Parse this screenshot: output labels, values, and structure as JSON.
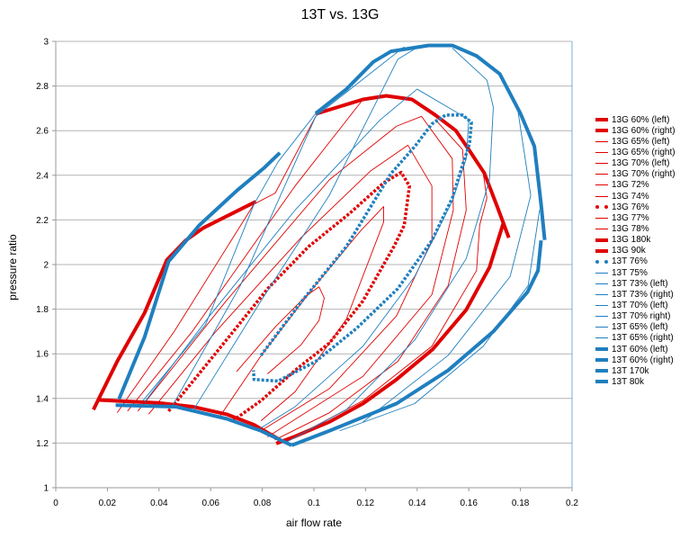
{
  "chart_data": {
    "type": "line",
    "title": "13T vs. 13G",
    "xlabel": "air flow rate",
    "ylabel": "pressure ratio",
    "xlim": [
      0,
      0.2
    ],
    "ylim": [
      1,
      3
    ],
    "xticks": [
      "0",
      "0.02",
      "0.04",
      "0.06",
      "0.08",
      "0.1",
      "0.12",
      "0.14",
      "0.16",
      "0.18",
      "0.2"
    ],
    "yticks": [
      "1",
      "1.2",
      "1.4",
      "1.6",
      "1.8",
      "2",
      "2.2",
      "2.4",
      "2.6",
      "2.8",
      "3"
    ],
    "grid": "horizontal",
    "legend": "right",
    "colors": {
      "13G": "#e00000",
      "13T": "#1f7fbf"
    },
    "series": [
      {
        "name": "13G 60% (left)",
        "color": "#e00000",
        "style": "bold",
        "points": [
          [
            0.0146,
            1.35
          ],
          [
            0.0166,
            1.397
          ],
          [
            0.0238,
            1.566
          ],
          [
            0.0344,
            1.783
          ],
          [
            0.043,
            2.02
          ],
          [
            0.0503,
            2.108
          ],
          [
            0.057,
            2.163
          ],
          [
            0.0675,
            2.224
          ],
          [
            0.0775,
            2.282
          ]
        ]
      },
      {
        "name": "13G 60% (right)",
        "color": "#e00000",
        "style": "bold",
        "points": [
          [
            0.0166,
            1.393
          ],
          [
            0.0397,
            1.38
          ],
          [
            0.053,
            1.363
          ],
          [
            0.0662,
            1.329
          ],
          [
            0.0768,
            1.282
          ],
          [
            0.0874,
            1.211
          ]
        ]
      },
      {
        "name": "13G 65% (left)",
        "color": "#e00000",
        "style": "thin",
        "points": [
          [
            0.0278,
            1.343
          ],
          [
            0.053,
            1.702
          ],
          [
            0.0927,
            2.352
          ],
          [
            0.119,
            2.74
          ]
        ]
      },
      {
        "name": "13G 65% (right)",
        "color": "#e00000",
        "style": "thin",
        "points": [
          [
            0.1656,
            2.407
          ],
          [
            0.167,
            2.298
          ],
          [
            0.1642,
            2.176
          ],
          [
            0.163,
            1.973
          ],
          [
            0.1457,
            1.634
          ],
          [
            0.119,
            1.39
          ],
          [
            0.0927,
            1.228
          ]
        ]
      },
      {
        "name": "13G 70% (left)",
        "color": "#e00000",
        "style": "thin",
        "points": [
          [
            0.0238,
            1.336
          ],
          [
            0.046,
            1.702
          ],
          [
            0.0768,
            2.271
          ],
          [
            0.085,
            2.32
          ],
          [
            0.1007,
            2.664
          ]
        ]
      },
      {
        "name": "13G 70% (right)",
        "color": "#e00000",
        "style": "thin",
        "points": [
          [
            0.147,
            2.65
          ],
          [
            0.1576,
            2.515
          ],
          [
            0.159,
            2.244
          ],
          [
            0.152,
            1.906
          ],
          [
            0.1325,
            1.566
          ],
          [
            0.106,
            1.336
          ],
          [
            0.0848,
            1.214
          ]
        ]
      },
      {
        "name": "13G 72%",
        "color": "#e00000",
        "style": "thin",
        "points": [
          [
            0.0318,
            1.343
          ],
          [
            0.066,
            1.837
          ],
          [
            0.106,
            2.38
          ],
          [
            0.132,
            2.62
          ],
          [
            0.1417,
            2.664
          ],
          [
            0.1536,
            2.474
          ],
          [
            0.154,
            2.244
          ],
          [
            0.1457,
            1.865
          ],
          [
            0.119,
            1.499
          ],
          [
            0.082,
            1.228
          ]
        ]
      },
      {
        "name": "13G 74%",
        "color": "#e00000",
        "style": "thin",
        "points": [
          [
            0.036,
            1.33
          ],
          [
            0.062,
            1.7
          ],
          [
            0.095,
            2.12
          ],
          [
            0.122,
            2.42
          ],
          [
            0.1364,
            2.535
          ],
          [
            0.1457,
            2.352
          ],
          [
            0.1457,
            2.108
          ],
          [
            0.132,
            1.77
          ],
          [
            0.106,
            1.444
          ],
          [
            0.0795,
            1.255
          ]
        ]
      },
      {
        "name": "13G 76%",
        "color": "#e00000",
        "style": "dotted",
        "points": [
          [
            0.0437,
            1.343
          ],
          [
            0.0556,
            1.512
          ],
          [
            0.0689,
            1.702
          ],
          [
            0.0821,
            1.892
          ],
          [
            0.098,
            2.081
          ],
          [
            0.1139,
            2.23
          ],
          [
            0.127,
            2.366
          ],
          [
            0.1338,
            2.413
          ],
          [
            0.137,
            2.352
          ],
          [
            0.135,
            2.176
          ],
          [
            0.131,
            2.081
          ],
          [
            0.119,
            1.837
          ],
          [
            0.106,
            1.648
          ],
          [
            0.0927,
            1.526
          ],
          [
            0.0795,
            1.39
          ],
          [
            0.068,
            1.295
          ]
        ]
      },
      {
        "name": "13G 77%",
        "color": "#e00000",
        "style": "thin",
        "points": [
          [
            0.0636,
            1.32
          ],
          [
            0.08,
            1.6
          ],
          [
            0.1,
            1.9
          ],
          [
            0.118,
            2.15
          ],
          [
            0.127,
            2.26
          ],
          [
            0.127,
            2.19
          ],
          [
            0.1126,
            1.756
          ],
          [
            0.0927,
            1.43
          ],
          [
            0.0795,
            1.3
          ]
        ]
      },
      {
        "name": "13G 78%",
        "color": "#e00000",
        "style": "thin",
        "points": [
          [
            0.07,
            1.52
          ],
          [
            0.085,
            1.72
          ],
          [
            0.097,
            1.86
          ],
          [
            0.102,
            1.9
          ],
          [
            0.104,
            1.85
          ],
          [
            0.102,
            1.75
          ],
          [
            0.095,
            1.64
          ],
          [
            0.082,
            1.51
          ]
        ]
      },
      {
        "name": "13G 180k",
        "color": "#e00000",
        "style": "bold",
        "points": [
          [
            0.1007,
            2.675
          ],
          [
            0.119,
            2.74
          ],
          [
            0.128,
            2.756
          ],
          [
            0.138,
            2.74
          ],
          [
            0.147,
            2.67
          ],
          [
            0.155,
            2.6
          ],
          [
            0.16,
            2.515
          ],
          [
            0.166,
            2.41
          ],
          [
            0.171,
            2.26
          ],
          [
            0.1755,
            2.12
          ]
        ]
      },
      {
        "name": "13G 90k",
        "color": "#e00000",
        "style": "bold",
        "points": [
          [
            0.0854,
            1.198
          ],
          [
            0.0927,
            1.23
          ],
          [
            0.106,
            1.295
          ],
          [
            0.119,
            1.377
          ],
          [
            0.132,
            1.485
          ],
          [
            0.146,
            1.62
          ],
          [
            0.159,
            1.797
          ],
          [
            0.168,
            1.987
          ],
          [
            0.1735,
            2.19
          ]
        ]
      },
      {
        "name": "13T 76%",
        "color": "#1f7fbf",
        "style": "dotted",
        "points": [
          [
            0.0795,
            1.593
          ],
          [
            0.0954,
            1.837
          ],
          [
            0.1126,
            2.081
          ],
          [
            0.1298,
            2.407
          ],
          [
            0.139,
            2.528
          ],
          [
            0.1457,
            2.63
          ],
          [
            0.151,
            2.67
          ],
          [
            0.1576,
            2.67
          ],
          [
            0.161,
            2.637
          ],
          [
            0.1603,
            2.542
          ],
          [
            0.1576,
            2.447
          ],
          [
            0.1536,
            2.298
          ],
          [
            0.1457,
            2.108
          ],
          [
            0.1325,
            1.892
          ],
          [
            0.1166,
            1.715
          ],
          [
            0.1007,
            1.566
          ],
          [
            0.0861,
            1.478
          ],
          [
            0.0768,
            1.485
          ],
          [
            0.0766,
            1.526
          ]
        ]
      },
      {
        "name": "13T 75%",
        "color": "#1f7fbf",
        "style": "thin",
        "points": [
          [
            0.0344,
            1.383
          ],
          [
            0.0596,
            1.77
          ],
          [
            0.0927,
            2.244
          ],
          [
            0.1258,
            2.65
          ],
          [
            0.14,
            2.786
          ],
          [
            0.16,
            2.65
          ],
          [
            0.159,
            2.474
          ],
          [
            0.1536,
            2.284
          ],
          [
            0.139,
            1.946
          ],
          [
            0.119,
            1.634
          ],
          [
            0.0927,
            1.363
          ],
          [
            0.0795,
            1.268
          ]
        ]
      },
      {
        "name": "13T 73% (left)",
        "color": "#1f7fbf",
        "style": "thin",
        "points": [
          [
            0.045,
            1.363
          ],
          [
            0.0715,
            1.906
          ],
          [
            0.1007,
            2.664
          ],
          [
            0.135,
            2.976
          ]
        ]
      },
      {
        "name": "13T 73% (right)",
        "color": "#1f7fbf",
        "style": "thin",
        "points": [
          [
            0.1536,
            2.97
          ],
          [
            0.167,
            2.827
          ],
          [
            0.1695,
            2.705
          ],
          [
            0.168,
            2.38
          ],
          [
            0.159,
            2.027
          ],
          [
            0.139,
            1.661
          ],
          [
            0.1126,
            1.35
          ],
          [
            0.0887,
            1.2
          ]
        ]
      },
      {
        "name": "13T 70% (left)",
        "color": "#1f7fbf",
        "style": "thin",
        "points": [
          [
            0.0338,
            1.39
          ],
          [
            0.058,
            1.73
          ],
          [
            0.0768,
            2.27
          ],
          [
            0.0861,
            2.46
          ],
          [
            0.1007,
            2.677
          ]
        ]
      },
      {
        "name": "13T 70% right)",
        "color": "#1f7fbf",
        "style": "thin",
        "points": [
          [
            0.179,
            2.69
          ],
          [
            0.184,
            2.31
          ],
          [
            0.176,
            1.946
          ],
          [
            0.152,
            1.593
          ],
          [
            0.119,
            1.295
          ]
        ]
      },
      {
        "name": "13T 65% (left)",
        "color": "#1f7fbf",
        "style": "thin",
        "points": [
          [
            0.053,
            1.343
          ],
          [
            0.0795,
            1.837
          ],
          [
            0.106,
            2.311
          ],
          [
            0.1325,
            2.92
          ],
          [
            0.1404,
            2.976
          ]
        ]
      },
      {
        "name": "13T 65% (right)",
        "color": "#1f7fbf",
        "style": "thin",
        "points": [
          [
            0.1874,
            2.244
          ],
          [
            0.183,
            1.906
          ],
          [
            0.1656,
            1.634
          ],
          [
            0.139,
            1.377
          ],
          [
            0.11,
            1.255
          ]
        ]
      },
      {
        "name": "13T 60% (left)",
        "color": "#1f7fbf",
        "style": "bold",
        "points": [
          [
            0.0245,
            1.397
          ],
          [
            0.0344,
            1.675
          ],
          [
            0.0437,
            2.014
          ],
          [
            0.0556,
            2.176
          ],
          [
            0.0702,
            2.332
          ],
          [
            0.0808,
            2.434
          ],
          [
            0.0868,
            2.501
          ]
        ]
      },
      {
        "name": "13T 60% (right)",
        "color": "#1f7fbf",
        "style": "bold",
        "points": [
          [
            0.0232,
            1.37
          ],
          [
            0.0464,
            1.363
          ],
          [
            0.0662,
            1.309
          ],
          [
            0.0795,
            1.255
          ],
          [
            0.0914,
            1.19
          ]
        ]
      },
      {
        "name": "13T 170k",
        "color": "#1f7fbf",
        "style": "bold",
        "points": [
          [
            0.1007,
            2.677
          ],
          [
            0.1126,
            2.786
          ],
          [
            0.123,
            2.908
          ],
          [
            0.1298,
            2.955
          ],
          [
            0.1444,
            2.982
          ],
          [
            0.1536,
            2.982
          ],
          [
            0.163,
            2.935
          ],
          [
            0.172,
            2.854
          ],
          [
            0.18,
            2.677
          ],
          [
            0.1854,
            2.53
          ],
          [
            0.188,
            2.27
          ],
          [
            0.1894,
            2.11
          ]
        ]
      },
      {
        "name": "13T 80k",
        "color": "#1f7fbf",
        "style": "bold",
        "points": [
          [
            0.0914,
            1.19
          ],
          [
            0.106,
            1.255
          ],
          [
            0.132,
            1.377
          ],
          [
            0.152,
            1.526
          ],
          [
            0.1695,
            1.7
          ],
          [
            0.1828,
            1.878
          ],
          [
            0.1868,
            1.973
          ],
          [
            0.188,
            2.108
          ]
        ]
      }
    ]
  }
}
